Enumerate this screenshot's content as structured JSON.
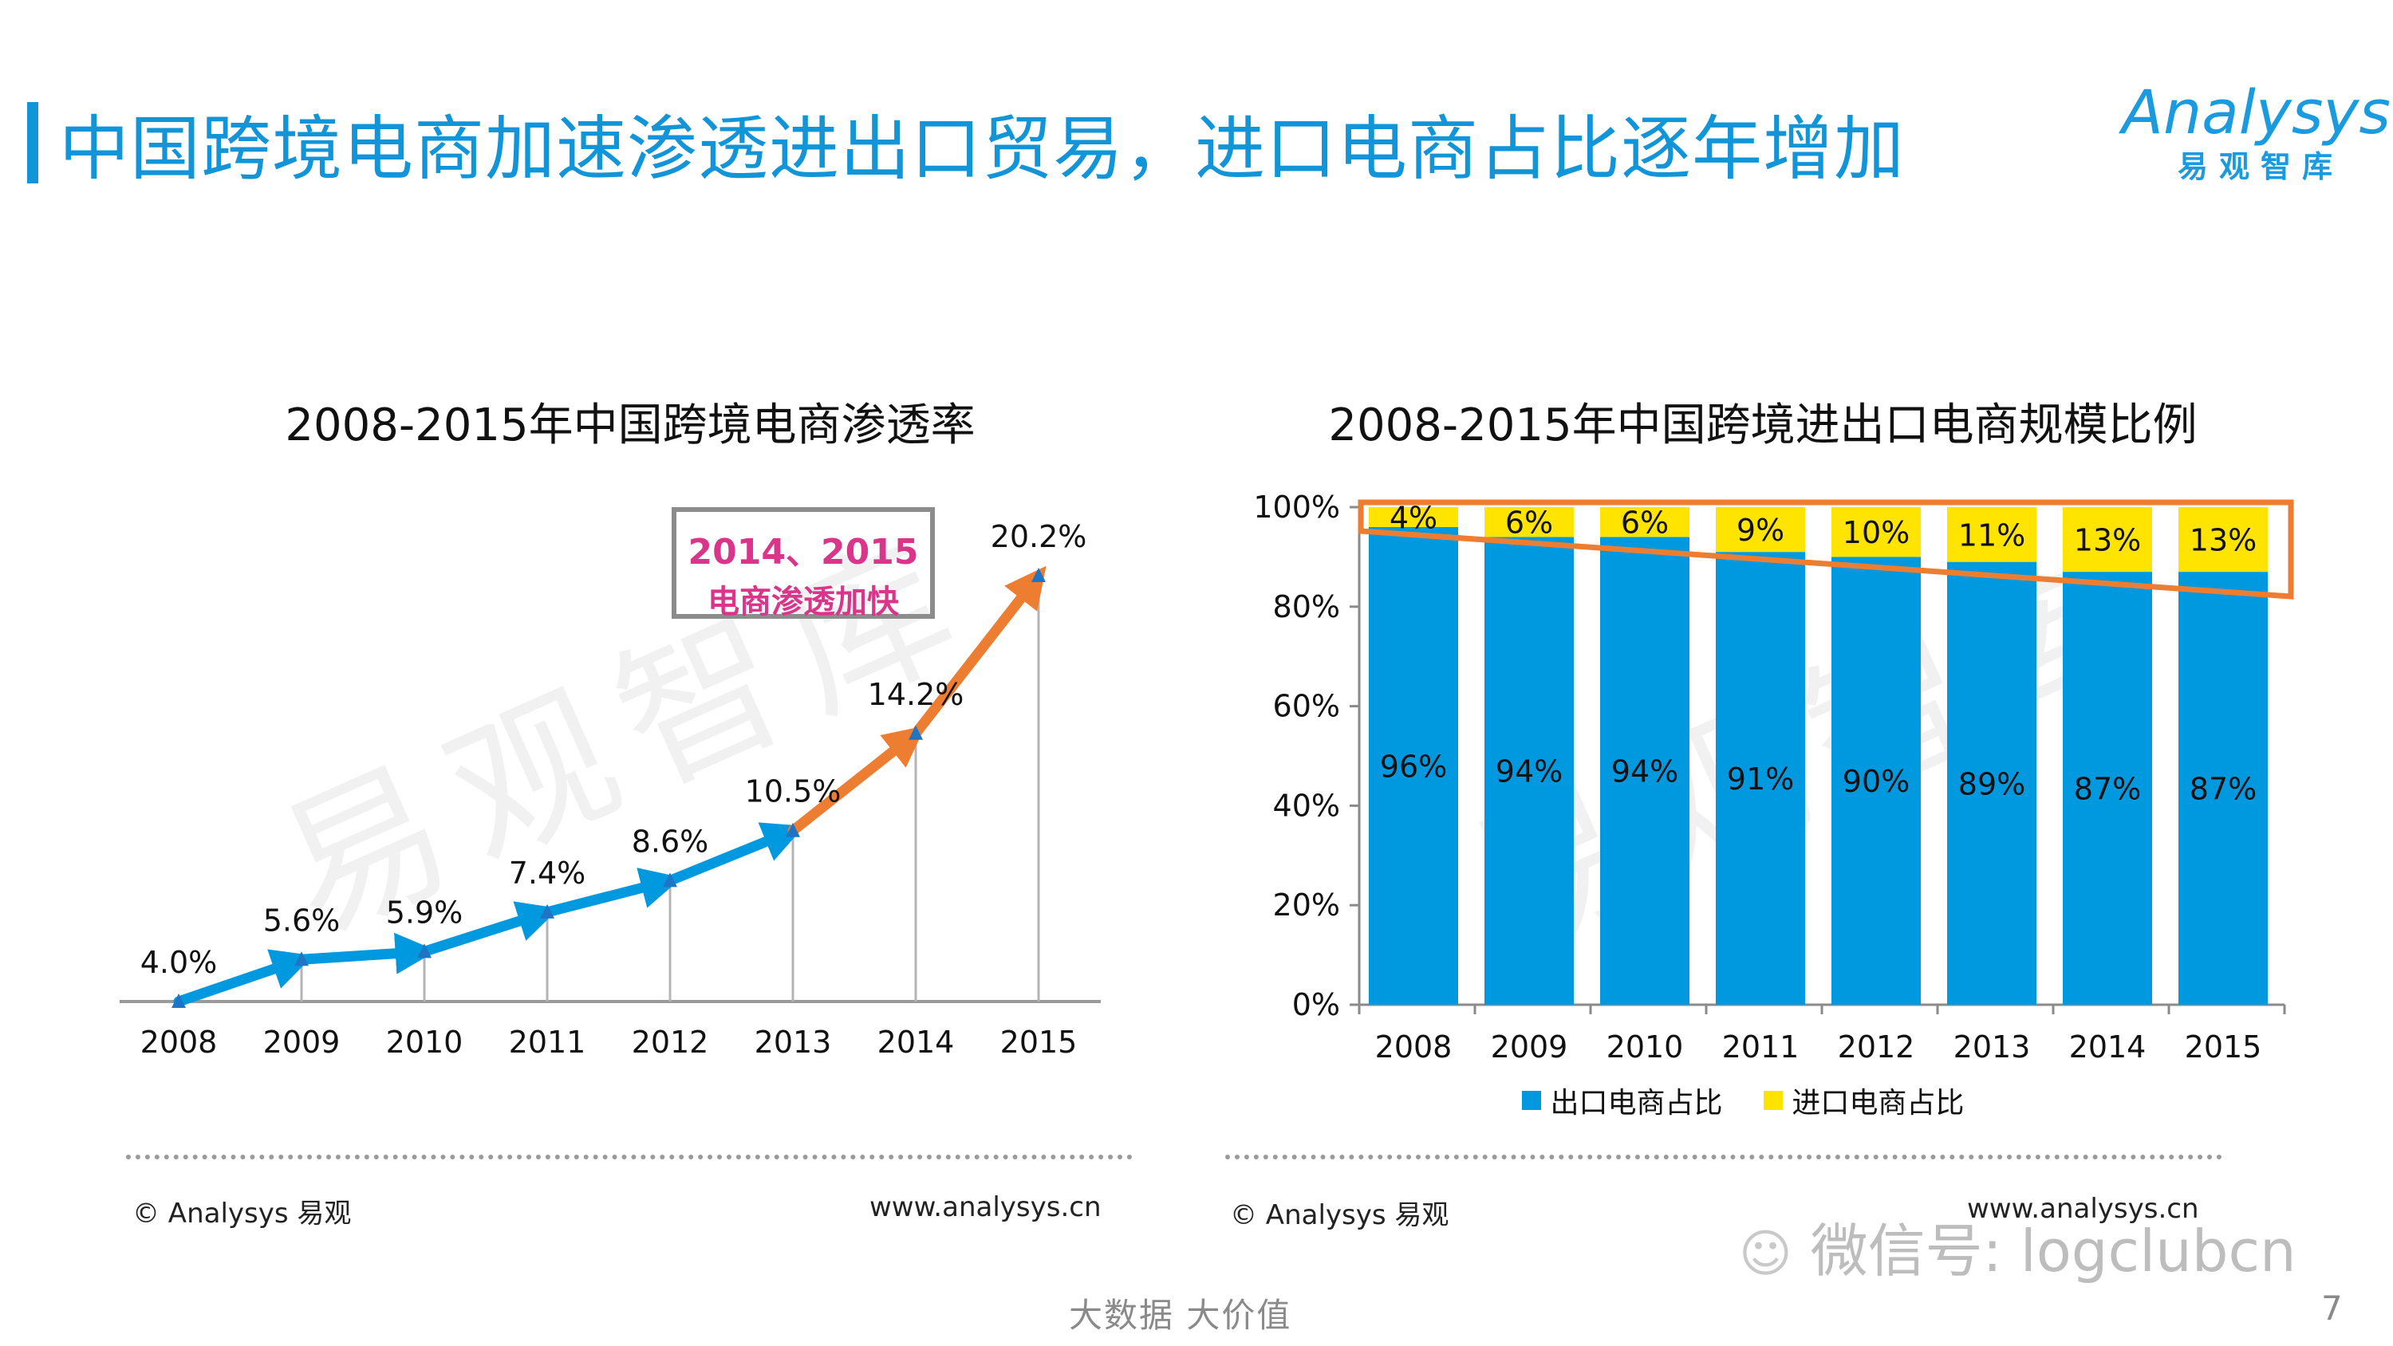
{
  "header": {
    "title": "中国跨境电商加速渗透进出口贸易，进口电商占比逐年增加",
    "logo_text": "Analysys",
    "logo_subtitle": "易观智库"
  },
  "colors": {
    "accent": "#1295d8",
    "export": "#0099e0",
    "import": "#ffe400",
    "highlight": "#ed7d31",
    "callout_text": "#d9358b"
  },
  "left_chart_title": "2008-2015年中国跨境电商渗透率",
  "right_chart_title": "2008-2015年中国跨境进出口电商规模比例",
  "watermark": "易观智库",
  "callout": {
    "line1": "2014、2015",
    "line2": "电商渗透加快"
  },
  "legend": {
    "export": "出口电商占比",
    "import": "进口电商占比"
  },
  "footer": {
    "left_copyright": "© Analysys 易观",
    "left_url": "www.analysys.cn",
    "right_copyright": "© Analysys 易观",
    "right_url": "www.analysys.cn",
    "slogan": "大数据    大价值",
    "page_number": "7",
    "wechat": "微信号: logclubcn"
  },
  "chart_data": [
    {
      "type": "line",
      "title": "2008-2015年中国跨境电商渗透率",
      "x": [
        "2008",
        "2009",
        "2010",
        "2011",
        "2012",
        "2013",
        "2014",
        "2015"
      ],
      "values": [
        4.0,
        5.6,
        5.9,
        7.4,
        8.6,
        10.5,
        14.2,
        20.2
      ],
      "labels": [
        "4.0%",
        "5.6%",
        "5.9%",
        "7.4%",
        "8.6%",
        "10.5%",
        "14.2%",
        "20.2%"
      ],
      "ylim": [
        4.0,
        20.2
      ],
      "highlight_from_index": 5,
      "grid": false
    },
    {
      "type": "bar",
      "stacked": true,
      "title": "2008-2015年中国跨境进出口电商规模比例",
      "categories": [
        "2008",
        "2009",
        "2010",
        "2011",
        "2012",
        "2013",
        "2014",
        "2015"
      ],
      "series": [
        {
          "name": "出口电商占比",
          "values": [
            96,
            94,
            94,
            91,
            90,
            89,
            87,
            87
          ],
          "labels": [
            "96%",
            "94%",
            "94%",
            "91%",
            "90%",
            "89%",
            "87%",
            "87%"
          ]
        },
        {
          "name": "进口电商占比",
          "values": [
            4,
            6,
            6,
            9,
            10,
            11,
            13,
            13
          ],
          "labels": [
            "4%",
            "6%",
            "6%",
            "9%",
            "10%",
            "11%",
            "13%",
            "13%"
          ]
        }
      ],
      "yticks": [
        "0%",
        "20%",
        "40%",
        "60%",
        "80%",
        "100%"
      ],
      "ylim": [
        0,
        100
      ],
      "legend_position": "bottom"
    }
  ]
}
